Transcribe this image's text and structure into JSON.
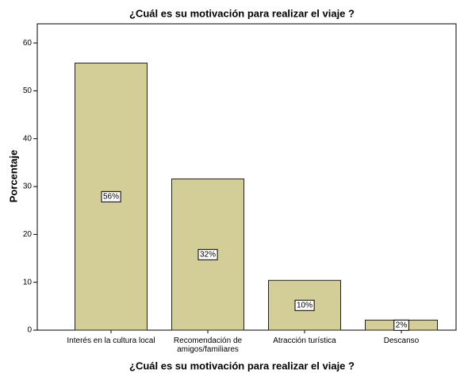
{
  "chart_data": {
    "type": "bar",
    "title": "¿Cuál es su motivación para realizar el viaje ?",
    "x_label": "¿Cuál es su motivación para realizar el viaje ?",
    "y_label": "Porcentaje",
    "categories": [
      "Interés en la cultura local",
      "Recomendación de amigos/familiares",
      "Atracción turística",
      "Descanso"
    ],
    "values": [
      55.8,
      31.6,
      10.4,
      2.1
    ],
    "value_labels": [
      "56%",
      "32%",
      "10%",
      "2%"
    ],
    "color": "#d3ce97",
    "ylim": [
      0,
      64
    ],
    "yticks": [
      0,
      10,
      20,
      30,
      40,
      50,
      60
    ],
    "grid": false
  }
}
